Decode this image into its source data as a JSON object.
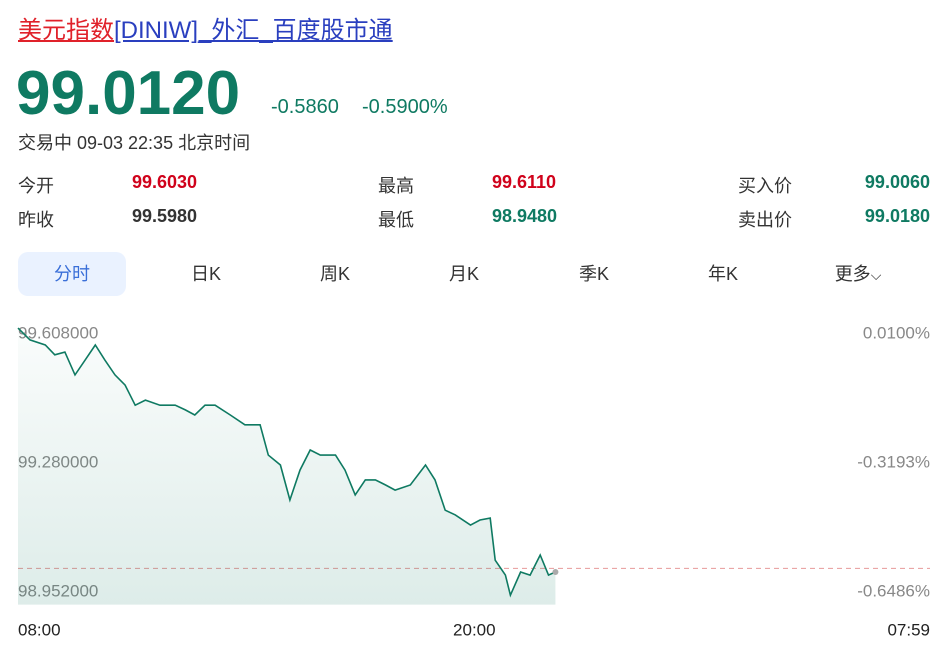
{
  "header": {
    "title_name": "美元指数",
    "title_rest": "[DINIW]_外汇_百度股市通",
    "price": "99.0120",
    "change": "-0.5860",
    "change_pct": "-0.5900%",
    "status": "交易中 09-03 22:35 北京时间"
  },
  "stats": [
    [
      {
        "label": "今开",
        "value": "99.6030"
      },
      {
        "label": "最高",
        "value": "99.6110"
      },
      {
        "label": "买入价",
        "value": "99.0060"
      }
    ],
    [
      {
        "label": "昨收",
        "value": "99.5980"
      },
      {
        "label": "最低",
        "value": "98.9480"
      },
      {
        "label": "卖出价",
        "value": "99.0180"
      }
    ]
  ],
  "tabs": [
    "分时",
    "日K",
    "周K",
    "月K",
    "季K",
    "年K",
    "更多"
  ],
  "chart_data": {
    "type": "line",
    "color": "#0f7a62",
    "x": [
      0,
      19,
      43,
      58,
      74,
      90,
      106,
      122,
      137,
      153,
      169,
      185,
      201,
      224,
      248,
      264,
      279,
      295,
      311,
      335,
      358,
      382,
      395,
      414,
      429,
      445,
      461,
      477,
      501,
      516,
      532,
      548,
      564,
      580,
      595,
      619,
      643,
      658,
      674,
      690,
      714,
      729,
      745,
      753,
      769,
      777,
      793,
      808,
      824,
      837,
      848
    ],
    "series": [
      {
        "name": "美元指数",
        "color": "#0f7a62",
        "values": [
          99.623,
          99.593,
          99.58,
          99.555,
          99.562,
          99.504,
          99.542,
          99.58,
          99.542,
          99.504,
          99.478,
          99.427,
          99.44,
          99.427,
          99.427,
          99.415,
          99.402,
          99.427,
          99.427,
          99.402,
          99.377,
          99.377,
          99.3,
          99.275,
          99.186,
          99.262,
          99.313,
          99.3,
          99.3,
          99.262,
          99.199,
          99.237,
          99.237,
          99.224,
          99.211,
          99.224,
          99.275,
          99.237,
          99.16,
          99.148,
          99.122,
          99.135,
          99.14,
          99.033,
          98.995,
          98.944,
          99.003,
          98.995,
          99.046,
          98.995,
          99.003
        ]
      }
    ],
    "reference_line": 99.012,
    "xlim": [
      0,
      1439
    ],
    "xticks": [
      {
        "value": 0,
        "label": "08:00"
      },
      {
        "value": 720,
        "label": "20:00"
      },
      {
        "value": 1439,
        "label": "07:59"
      }
    ],
    "ylim": [
      98.92,
      99.64
    ],
    "yticks": [
      {
        "value": 98.952,
        "label": "98.952000"
      },
      {
        "value": 99.28,
        "label": "99.280000"
      },
      {
        "value": 99.608,
        "label": "99.608000"
      }
    ],
    "y2lim": [
      -0.6807,
      0.0422
    ],
    "y2ticks": [
      {
        "value": -0.6486,
        "label": "-0.6486%"
      },
      {
        "value": -0.3193,
        "label": "-0.3193%"
      },
      {
        "value": 0.01,
        "label": "0.0100%"
      }
    ]
  }
}
